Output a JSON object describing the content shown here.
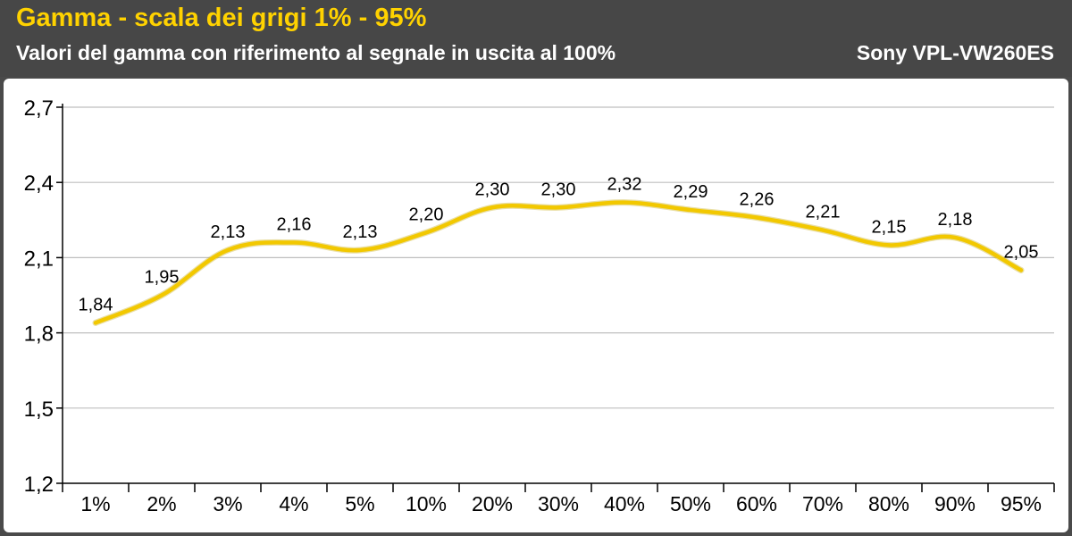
{
  "header": {
    "title": "Gamma - scala dei grigi 1% - 95%",
    "subtitle": "Valori del gamma con riferimento al segnale in uscita al 100%",
    "model": "Sony VPL-VW260ES"
  },
  "colors": {
    "header_bg": "#474747",
    "title": "#ffd200",
    "line": "#f2c800",
    "gridline": "#bfbfbf",
    "plot_bg": "#ffffff"
  },
  "chart_data": {
    "type": "line",
    "categories": [
      "1%",
      "2%",
      "3%",
      "4%",
      "5%",
      "10%",
      "20%",
      "30%",
      "40%",
      "50%",
      "60%",
      "70%",
      "80%",
      "90%",
      "95%"
    ],
    "series": [
      {
        "values": [
          1.84,
          1.95,
          2.13,
          2.16,
          2.13,
          2.2,
          2.3,
          2.3,
          2.32,
          2.29,
          2.26,
          2.21,
          2.15,
          2.18,
          2.05
        ]
      }
    ],
    "value_labels": [
      "1,84",
      "1,95",
      "2,13",
      "2,16",
      "2,13",
      "2,20",
      "2,30",
      "2,30",
      "2,32",
      "2,29",
      "2,26",
      "2,21",
      "2,15",
      "2,18",
      "2,05"
    ],
    "y_ticks": [
      1.2,
      1.5,
      1.8,
      2.1,
      2.4,
      2.7
    ],
    "y_tick_labels": [
      "1,2",
      "1,5",
      "1,8",
      "2,1",
      "2,4",
      "2,7"
    ],
    "ylim": [
      1.2,
      2.7
    ],
    "grid": true,
    "smooth": true
  }
}
